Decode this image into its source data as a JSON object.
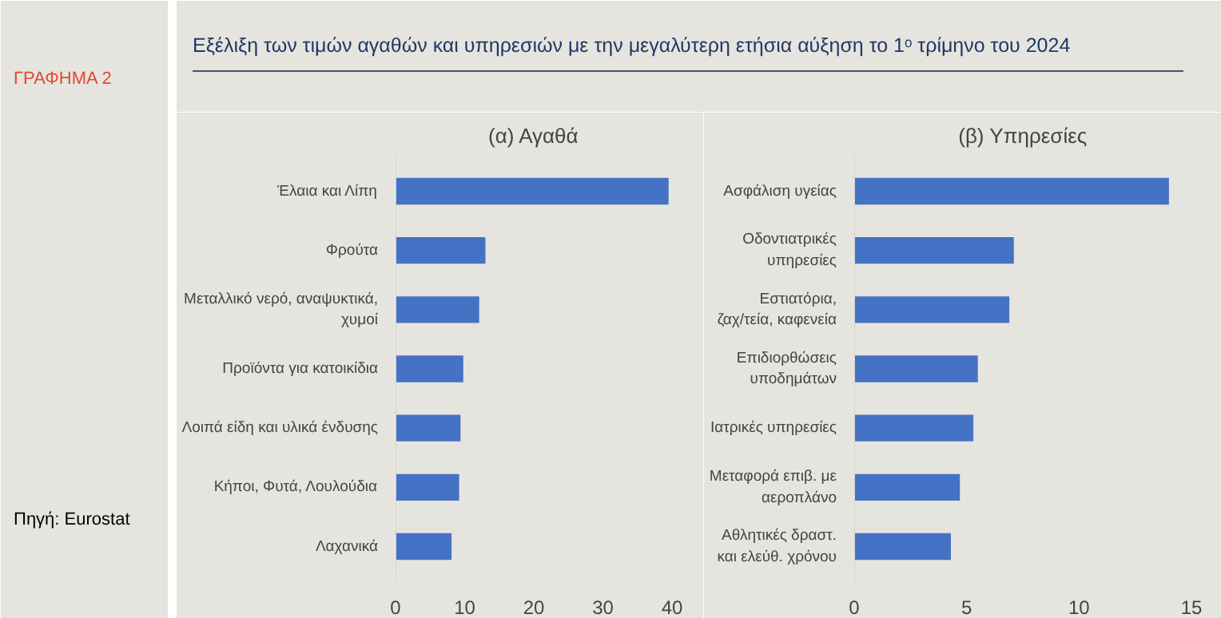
{
  "chart_data": [
    {
      "type": "bar",
      "orientation": "horizontal",
      "title": "(α) Αγαθά",
      "annotations": [
        "ΓΡΑΦΗΜΑ 2",
        "Εξέλιξη των τιμών αγαθών και υπηρεσιών με την μεγαλύτερη ετήσια αύξηση το 1ᵒ τρίμηνο του 2024",
        "Πηγή: Eurostat"
      ],
      "categories": [
        "Έλαια και Λίπη",
        "Φρούτα",
        "Μεταλλικό νερό, αναψυκτικά, χυμοί",
        "Προϊόντα για κατοικίδια",
        "Λοιπά είδη και υλικά ένδυσης",
        "Κήποι, Φυτά, Λουλούδια",
        "Λαχανικά"
      ],
      "series": [
        {
          "color": "#4472c4",
          "values": [
            39.5,
            13.0,
            12.1,
            9.8,
            9.4,
            9.2,
            8.1
          ]
        }
      ],
      "xlim": [
        0,
        40
      ],
      "xticks": [
        0,
        10,
        20,
        30,
        40
      ],
      "grid": false
    },
    {
      "type": "bar",
      "orientation": "horizontal",
      "title": "(β) Υπηρεσίες",
      "categories": [
        "Ασφάλιση υγείας",
        "Οδοντιατρικές υπηρεσίες",
        "Εστιατόρια, ζαχ/τεία, καφενεία",
        "Επιδιορθώσεις υποδημάτων",
        "Ιατρικές υπηρεσίες",
        "Μεταφορά επιβ. με αεροπλάνο",
        "Αθλητικές δραστ. και ελεύθ. χρόνου"
      ],
      "series": [
        {
          "color": "#4472c4",
          "values": [
            14.0,
            7.1,
            6.9,
            5.5,
            5.3,
            4.7,
            4.3
          ]
        }
      ],
      "xlim": [
        0,
        15
      ],
      "xticks": [
        0,
        5,
        10,
        15
      ],
      "grid": false
    }
  ]
}
